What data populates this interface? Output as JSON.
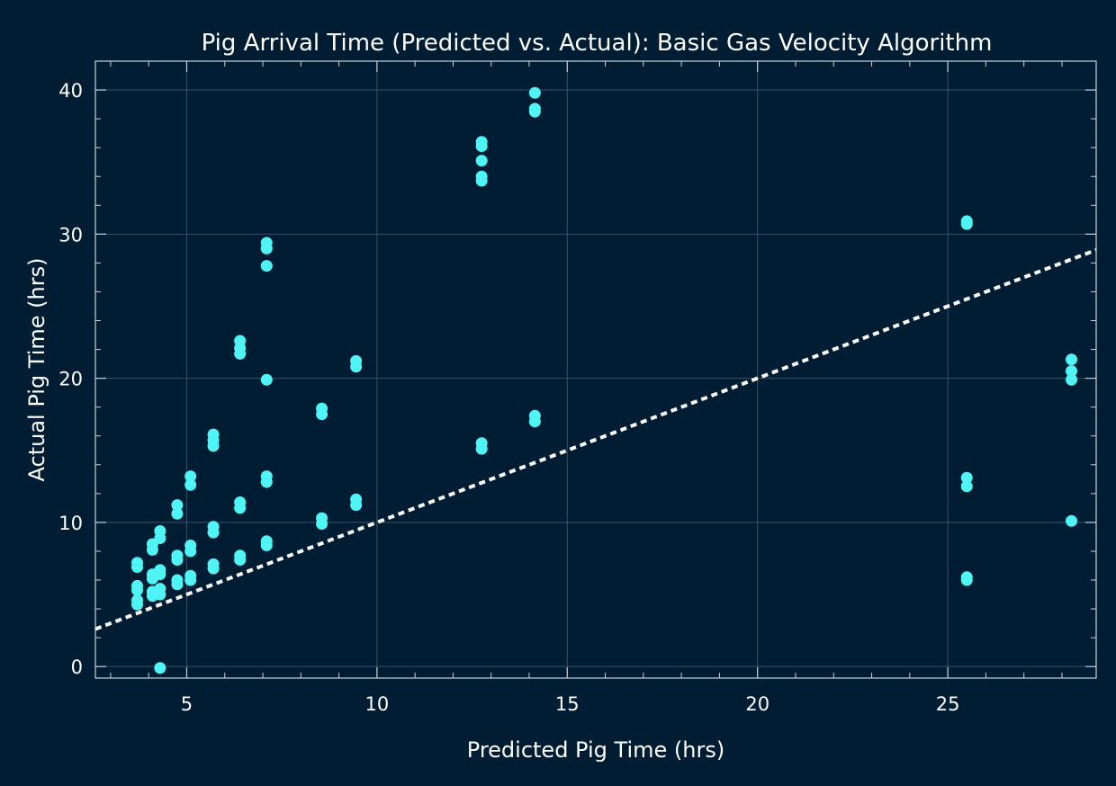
{
  "chart_data": {
    "type": "scatter",
    "title": "Pig Arrival Time (Predicted vs. Actual): Basic Gas Velocity Algorithm",
    "xlabel": "Predicted Pig Time (hrs)",
    "ylabel": "Actual Pig Time (hrs)",
    "xlim": [
      2.6,
      28.9
    ],
    "ylim": [
      -0.8,
      42
    ],
    "xticks": [
      5,
      10,
      15,
      20,
      25
    ],
    "yticks": [
      0,
      10,
      20,
      30,
      40
    ],
    "x_minor_step": 1,
    "y_minor_step": 2,
    "grid": true,
    "colors": {
      "background": "#001d33",
      "points": "#4ff5f5",
      "reference_line": "#ffffff",
      "grid": "#3a5266",
      "frame": "#c9d2da"
    },
    "reference_line": {
      "style": "dotted",
      "points": [
        [
          2.6,
          2.6
        ],
        [
          28.9,
          28.9
        ]
      ]
    },
    "series": [
      {
        "points": [
          [
            3.7,
            7.2
          ],
          [
            3.7,
            6.9
          ],
          [
            3.7,
            5.6
          ],
          [
            3.7,
            5.3
          ],
          [
            3.7,
            4.6
          ],
          [
            3.7,
            4.3
          ],
          [
            4.1,
            8.5
          ],
          [
            4.1,
            8.1
          ],
          [
            4.1,
            6.4
          ],
          [
            4.1,
            6.1
          ],
          [
            4.1,
            5.2
          ],
          [
            4.1,
            4.9
          ],
          [
            4.3,
            9.4
          ],
          [
            4.3,
            8.9
          ],
          [
            4.3,
            6.7
          ],
          [
            4.3,
            6.4
          ],
          [
            4.3,
            5.4
          ],
          [
            4.3,
            5.0
          ],
          [
            4.3,
            -0.1
          ],
          [
            4.75,
            11.2
          ],
          [
            4.75,
            10.6
          ],
          [
            4.75,
            7.7
          ],
          [
            4.75,
            7.4
          ],
          [
            4.75,
            6.0
          ],
          [
            4.75,
            5.7
          ],
          [
            5.1,
            13.2
          ],
          [
            5.1,
            12.6
          ],
          [
            5.1,
            8.4
          ],
          [
            5.1,
            8.0
          ],
          [
            5.1,
            6.3
          ],
          [
            5.1,
            6.0
          ],
          [
            5.7,
            16.1
          ],
          [
            5.7,
            15.7
          ],
          [
            5.7,
            15.3
          ],
          [
            5.7,
            9.7
          ],
          [
            5.7,
            9.3
          ],
          [
            5.7,
            7.1
          ],
          [
            5.7,
            6.8
          ],
          [
            6.4,
            22.6
          ],
          [
            6.4,
            22.1
          ],
          [
            6.4,
            21.7
          ],
          [
            6.4,
            11.4
          ],
          [
            6.4,
            11.0
          ],
          [
            6.4,
            7.7
          ],
          [
            6.4,
            7.4
          ],
          [
            7.1,
            29.4
          ],
          [
            7.1,
            29.0
          ],
          [
            7.1,
            27.8
          ],
          [
            7.1,
            19.9
          ],
          [
            7.1,
            13.2
          ],
          [
            7.1,
            12.8
          ],
          [
            7.1,
            8.7
          ],
          [
            7.1,
            8.4
          ],
          [
            8.55,
            17.9
          ],
          [
            8.55,
            17.5
          ],
          [
            8.55,
            10.3
          ],
          [
            8.55,
            9.9
          ],
          [
            9.45,
            21.2
          ],
          [
            9.45,
            20.8
          ],
          [
            9.45,
            11.6
          ],
          [
            9.45,
            11.2
          ],
          [
            12.75,
            36.4
          ],
          [
            12.75,
            36.1
          ],
          [
            12.75,
            35.1
          ],
          [
            12.75,
            34.0
          ],
          [
            12.75,
            33.7
          ],
          [
            12.75,
            15.5
          ],
          [
            12.75,
            15.1
          ],
          [
            14.15,
            39.8
          ],
          [
            14.15,
            38.7
          ],
          [
            14.15,
            38.5
          ],
          [
            14.15,
            17.4
          ],
          [
            14.15,
            17.0
          ],
          [
            25.5,
            30.9
          ],
          [
            25.5,
            30.7
          ],
          [
            25.5,
            13.1
          ],
          [
            25.5,
            12.5
          ],
          [
            25.5,
            6.2
          ],
          [
            25.5,
            6.0
          ],
          [
            28.25,
            21.3
          ],
          [
            28.25,
            20.5
          ],
          [
            28.25,
            19.9
          ],
          [
            28.25,
            10.1
          ]
        ]
      }
    ]
  }
}
